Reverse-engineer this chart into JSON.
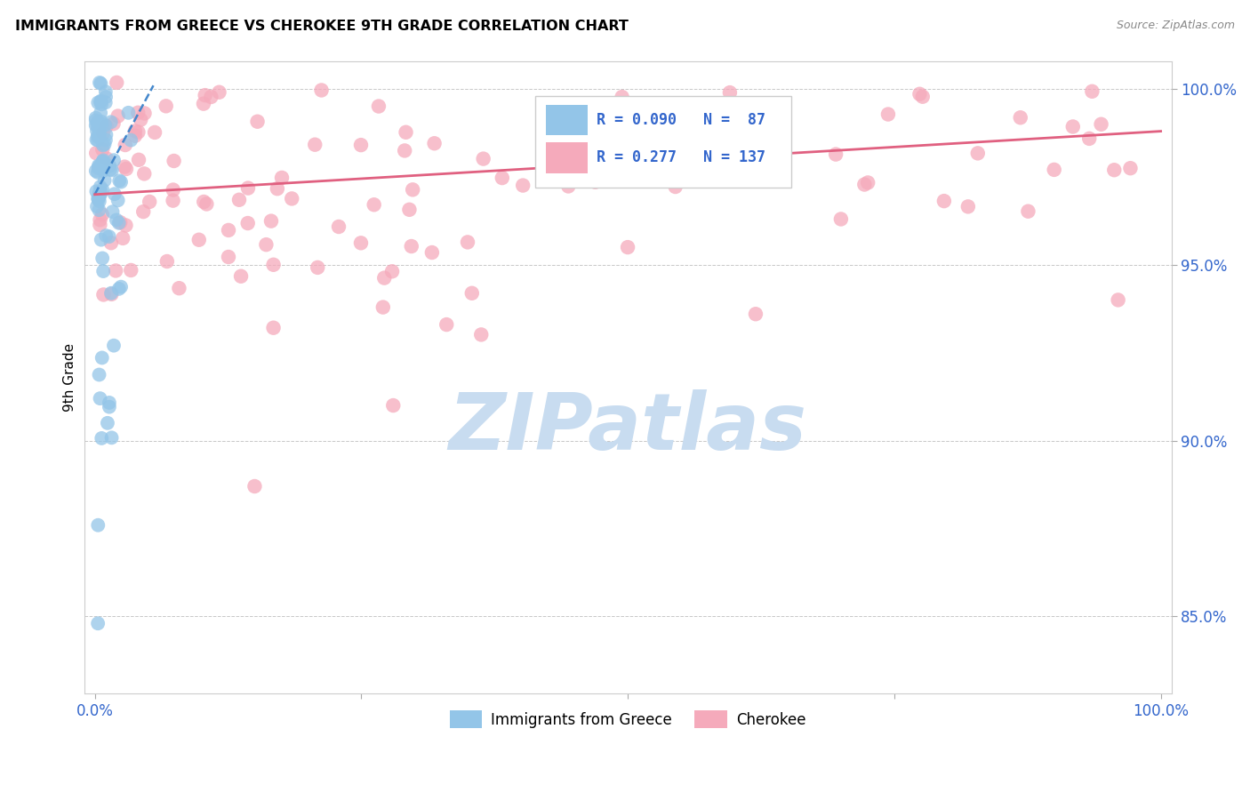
{
  "title": "IMMIGRANTS FROM GREECE VS CHEROKEE 9TH GRADE CORRELATION CHART",
  "source": "Source: ZipAtlas.com",
  "ylabel": "9th Grade",
  "legend_label1": "Immigrants from Greece",
  "legend_label2": "Cherokee",
  "R1": 0.09,
  "N1": 87,
  "R2": 0.277,
  "N2": 137,
  "color_blue": "#93C5E8",
  "color_pink": "#F5AABB",
  "color_trendline_blue": "#4488CC",
  "color_trendline_pink": "#E06080",
  "color_axis_text": "#3366CC",
  "background_color": "#FFFFFF",
  "watermark_text": "ZIPatlas",
  "watermark_color": "#C8DCF0",
  "xlim": [
    -0.01,
    1.01
  ],
  "ylim": [
    0.828,
    1.008
  ],
  "ytick_positions": [
    0.85,
    0.9,
    0.95,
    1.0
  ],
  "ytick_labels": [
    "85.0%",
    "90.0%",
    "95.0%",
    "100.0%"
  ],
  "blue_trendline_x": [
    0.0,
    0.055
  ],
  "blue_trendline_y": [
    0.97,
    1.001
  ],
  "pink_trendline_x": [
    0.0,
    1.0
  ],
  "pink_trendline_y": [
    0.97,
    0.988
  ]
}
